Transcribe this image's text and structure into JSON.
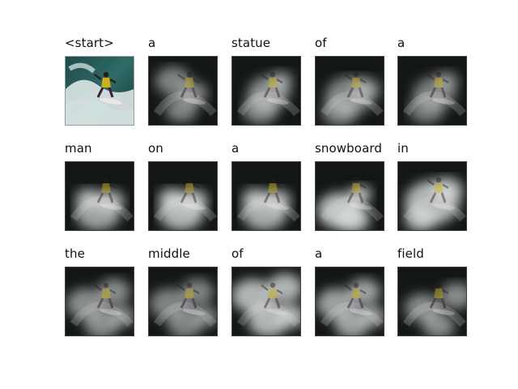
{
  "caption_words": [
    "<start>",
    "a",
    "statue",
    "of",
    "a",
    "man",
    "on",
    "a",
    "snowboard",
    "in",
    "the",
    "middle",
    "of",
    "a",
    "field"
  ],
  "panels": [
    {
      "kind": "original"
    },
    {
      "kind": "attention",
      "focus": "left-upper",
      "intensity": 0.55
    },
    {
      "kind": "attention",
      "focus": "center",
      "intensity": 0.6
    },
    {
      "kind": "attention",
      "focus": "center-wide",
      "intensity": 0.55
    },
    {
      "kind": "attention",
      "focus": "center",
      "intensity": 0.5
    },
    {
      "kind": "attention",
      "focus": "lower-center",
      "intensity": 0.7
    },
    {
      "kind": "attention",
      "focus": "lower-center",
      "intensity": 0.8
    },
    {
      "kind": "attention",
      "focus": "lower-center",
      "intensity": 0.75
    },
    {
      "kind": "attention",
      "focus": "lower-left",
      "intensity": 0.85
    },
    {
      "kind": "attention",
      "focus": "wide",
      "intensity": 0.8
    },
    {
      "kind": "attention",
      "focus": "diffuse",
      "intensity": 0.6
    },
    {
      "kind": "attention",
      "focus": "diffuse",
      "intensity": 0.55
    },
    {
      "kind": "attention",
      "focus": "bright-diffuse",
      "intensity": 0.8
    },
    {
      "kind": "attention",
      "focus": "diffuse",
      "intensity": 0.7
    },
    {
      "kind": "attention",
      "focus": "right-edge",
      "intensity": 0.6
    }
  ]
}
